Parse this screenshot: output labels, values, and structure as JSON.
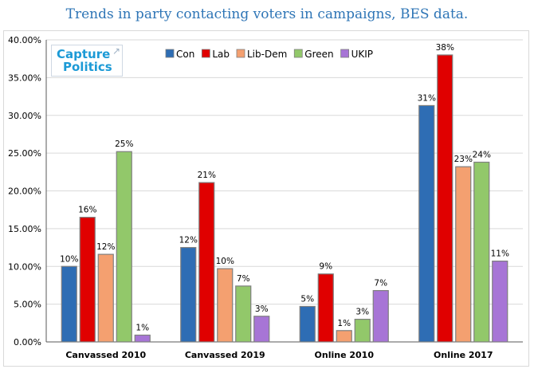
{
  "title": "Trends in party contacting voters in campaigns, BES data.",
  "logo": {
    "line1": "Capture",
    "line2": "Politics",
    "arrow_icon": "external-arrow-icon"
  },
  "chart_data": {
    "type": "bar",
    "title": "Trends in party contacting voters in campaigns, BES data.",
    "xlabel": "",
    "ylabel": "",
    "ylim": [
      0,
      40
    ],
    "y_ticks": [
      "0.00%",
      "5.00%",
      "10.00%",
      "15.00%",
      "20.00%",
      "25.00%",
      "30.00%",
      "35.00%",
      "40.00%"
    ],
    "grid": true,
    "legend_position": "top",
    "categories": [
      "Canvassed 2010",
      "Canvassed 2019",
      "Online 2010",
      "Online 2017"
    ],
    "series": [
      {
        "name": "Con",
        "color": "#2e6db4",
        "values": [
          10,
          12.5,
          4.7,
          31.3
        ],
        "labels": [
          "10%",
          "12%",
          "5%",
          "31%"
        ]
      },
      {
        "name": "Lab",
        "color": "#e00000",
        "values": [
          16.5,
          21.1,
          9.0,
          38.0
        ],
        "labels": [
          "16%",
          "21%",
          "9%",
          "38%"
        ]
      },
      {
        "name": "Lib-Dem",
        "color": "#f4a070",
        "values": [
          11.6,
          9.7,
          1.5,
          23.2
        ],
        "labels": [
          "12%",
          "10%",
          "1%",
          "23%"
        ]
      },
      {
        "name": "Green",
        "color": "#92c86a",
        "values": [
          25.2,
          7.4,
          3.0,
          23.8
        ],
        "labels": [
          "25%",
          "7%",
          "3%",
          "24%"
        ]
      },
      {
        "name": "UKIP",
        "color": "#a775d6",
        "values": [
          0.9,
          3.4,
          6.8,
          10.7
        ],
        "labels": [
          "1%",
          "3%",
          "7%",
          "11%"
        ]
      }
    ]
  }
}
